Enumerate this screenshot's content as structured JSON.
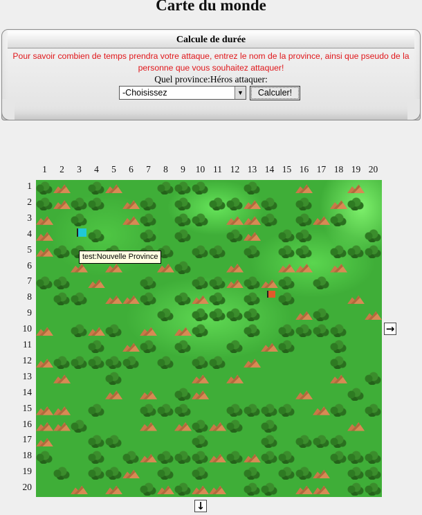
{
  "page": {
    "title": "Carte du monde"
  },
  "calculator": {
    "header": "Calcule de durée",
    "description": "Pour savoir combien de temps prendra votre attaque, entrez le nom de la province, ainsi que pseudo de la personne que vous souhaitez attaquer!",
    "question": "Quel province:Héros attaquer:",
    "select_value": "-Choisissez",
    "button_label": "Calculer!"
  },
  "map": {
    "columns": [
      "1",
      "2",
      "3",
      "4",
      "5",
      "6",
      "7",
      "8",
      "9",
      "10",
      "11",
      "12",
      "13",
      "14",
      "15",
      "16",
      "17",
      "18",
      "19",
      "20"
    ],
    "rows": [
      "1",
      "2",
      "3",
      "4",
      "5",
      "6",
      "7",
      "8",
      "9",
      "10",
      "11",
      "12",
      "13",
      "14",
      "15",
      "16",
      "17",
      "18",
      "19",
      "20"
    ],
    "tooltip": "test:Nouvelle Province",
    "terrain_rows": [
      "TM TM  TTT  T  M  M M ",
      "TMTT MT T TTMT T MT",
      "M T  MT TT MMT TMT ",
      "M  T  T T  TM TT   T",
      "MTT T TT TT T TT TTT",
      "  M M  MT  M  MM M  ",
      "TT M  T  TTMTMT T   ",
      " TT MMT TMT T T   M ",
      "       T TTTT  MT  M",
      "M TMT M MT  T TTTT  ",
      "   T MT T  T MT  T  ",
      "MTTTTT T TT M    T  ",
      " M  T    M M     M T",
      "    M M TM     M  T ",
      "MM T  TTT  TTTT MT TT",
      "MMT   M MTMT T    M ",
      "M  TT    T   T TTT  ",
      "T  T TMTTTMTMTT  TTT",
      " T TTM T T  T TTM TT",
      "  M M TMTMM TT MM TT"
    ]
  },
  "navigation": {
    "right_arrow": "→",
    "down_arrow": "↓"
  }
}
